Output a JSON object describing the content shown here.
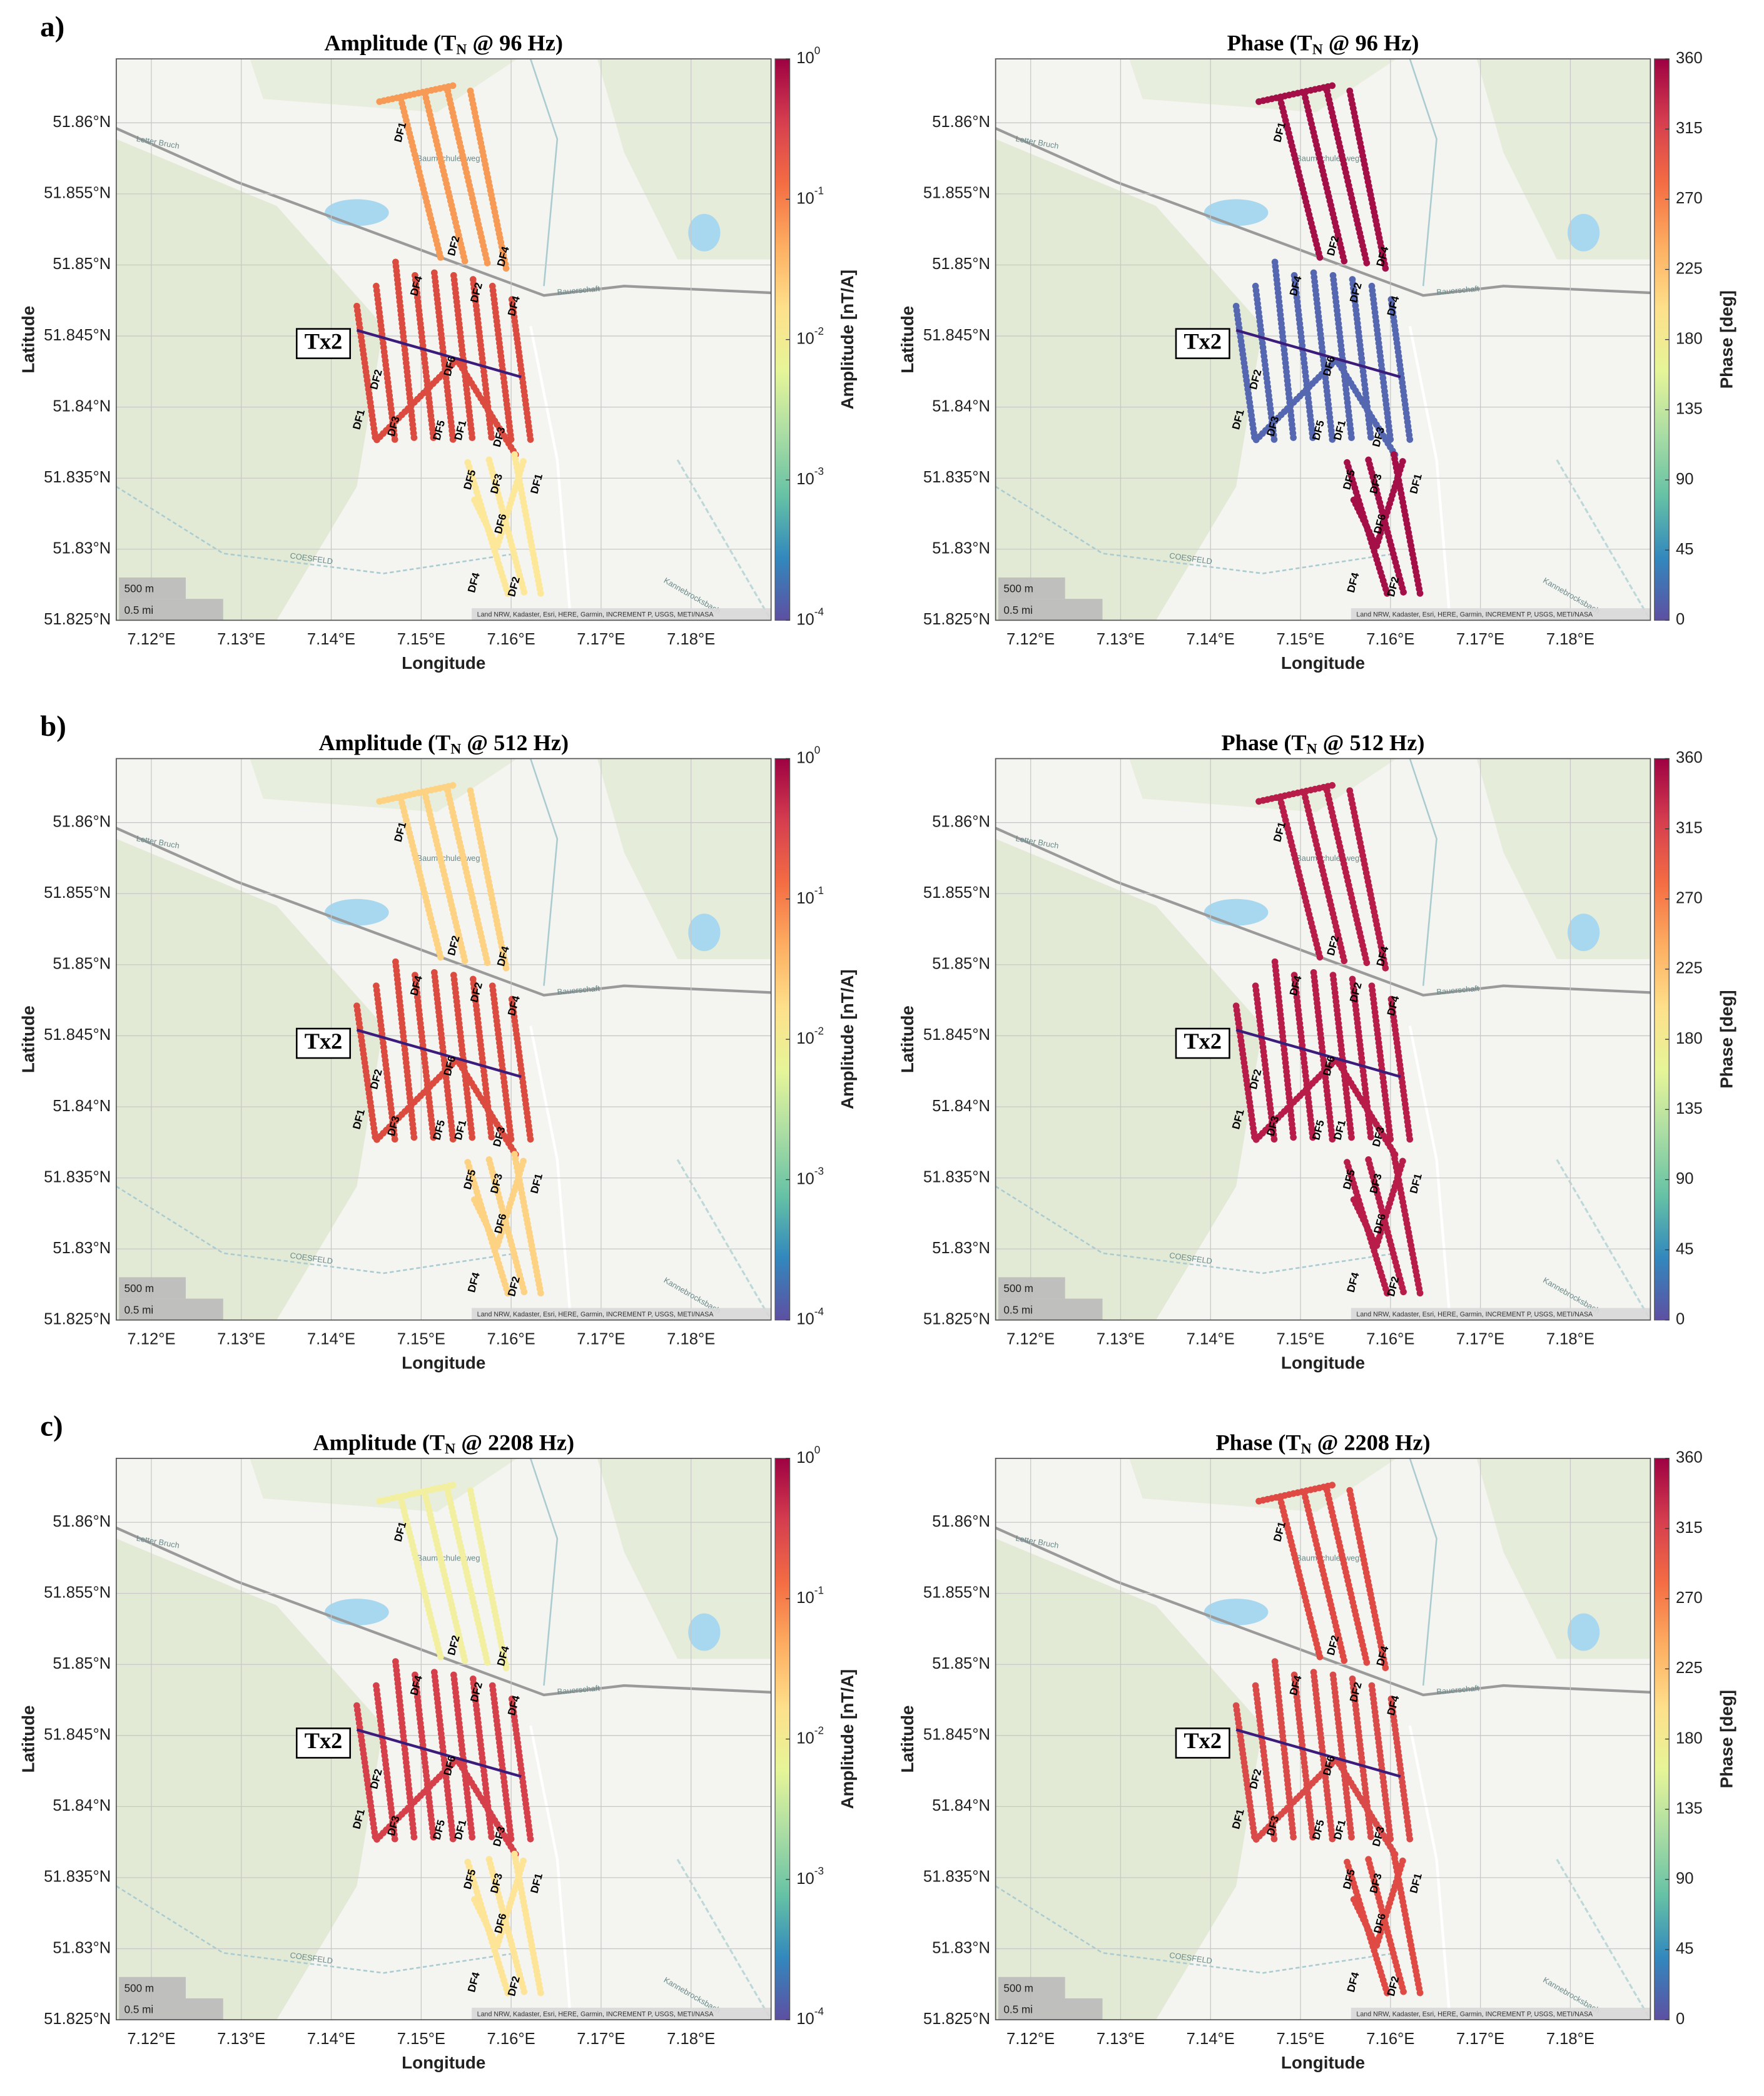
{
  "row_labels": [
    "a)",
    "b)",
    "c)"
  ],
  "x_label": "Longitude",
  "y_label": "Latitude",
  "xlim": [
    7.1161,
    7.1889
  ],
  "ylim": [
    51.825,
    51.8645
  ],
  "xticks": [
    {
      "value": 7.12,
      "label": "7.12°E"
    },
    {
      "value": 7.13,
      "label": "7.13°E"
    },
    {
      "value": 7.14,
      "label": "7.14°E"
    },
    {
      "value": 7.15,
      "label": "7.15°E"
    },
    {
      "value": 7.16,
      "label": "7.16°E"
    },
    {
      "value": 7.17,
      "label": "7.17°E"
    },
    {
      "value": 7.18,
      "label": "7.18°E"
    }
  ],
  "yticks": [
    {
      "value": 51.825,
      "label": "51.825°N"
    },
    {
      "value": 51.83,
      "label": "51.83°N"
    },
    {
      "value": 51.835,
      "label": "51.835°N"
    },
    {
      "value": 51.84,
      "label": "51.84°N"
    },
    {
      "value": 51.845,
      "label": "51.845°N"
    },
    {
      "value": 51.85,
      "label": "51.85°N"
    },
    {
      "value": 51.855,
      "label": "51.855°N"
    },
    {
      "value": 51.86,
      "label": "51.86°N"
    }
  ],
  "colormap": [
    "#5e4fa2",
    "#3288bd",
    "#66c2a5",
    "#abdda4",
    "#e6f598",
    "#fee08b",
    "#fdae61",
    "#f46d43",
    "#d53e4f",
    "#9e0142"
  ],
  "transmitter": "Tx2",
  "track_labels": [
    "DF1",
    "DF2",
    "DF3",
    "DF4",
    "DF5",
    "DF6"
  ],
  "places": [
    "Letter Bruch",
    "Bauerschaft",
    "COESFELD",
    "Kannebrocksbach",
    "Baumschulenweg"
  ],
  "scale_labels": [
    "500 m",
    "0.5 mi"
  ],
  "attribution": "Land NRW, Kadaster, Esri, HERE, Garmin, INCREMENT P, USGS, METI/NASA",
  "panels": [
    {
      "title": "Amplitude (T",
      "title_sub": "N",
      "title_rest": " @ 96 Hz)",
      "colorbar_label": "Amplitude [nT/A]",
      "log": true,
      "clim": [
        0.0001,
        1
      ],
      "cticks": [
        {
          "value": 0.0001,
          "label": "10",
          "exponent": "-4"
        },
        {
          "value": 0.001,
          "label": "10",
          "exponent": "-3"
        },
        {
          "value": 0.01,
          "label": "10",
          "exponent": "-2"
        },
        {
          "value": 0.1,
          "label": "10",
          "exponent": "-1"
        },
        {
          "value": 1,
          "label": "10",
          "exponent": "0"
        }
      ],
      "track_colors": [
        "#f79a55",
        "#dc4b40",
        "#fde89a"
      ]
    },
    {
      "title": "Phase (T",
      "title_sub": "N",
      "title_rest": " @ 96 Hz)",
      "colorbar_label": "Phase [deg]",
      "log": false,
      "clim": [
        0,
        360
      ],
      "cticks": [
        0,
        45,
        90,
        135,
        180,
        225,
        270,
        315,
        360
      ],
      "track_colors": [
        "#a50f47",
        "#5567b0",
        "#a50f47"
      ]
    },
    {
      "title": "Amplitude (T",
      "title_sub": "N",
      "title_rest": " @ 512 Hz)",
      "colorbar_label": "Amplitude [nT/A]",
      "log": true,
      "clim": [
        0.0001,
        1
      ],
      "cticks": [
        {
          "value": 0.0001,
          "label": "10",
          "exponent": "-4"
        },
        {
          "value": 0.001,
          "label": "10",
          "exponent": "-3"
        },
        {
          "value": 0.01,
          "label": "10",
          "exponent": "-2"
        },
        {
          "value": 0.1,
          "label": "10",
          "exponent": "-1"
        },
        {
          "value": 1,
          "label": "10",
          "exponent": "0"
        }
      ],
      "track_colors": [
        "#fdd283",
        "#dc4b40",
        "#fdd283"
      ]
    },
    {
      "title": "Phase (T",
      "title_sub": "N",
      "title_rest": " @ 512 Hz)",
      "colorbar_label": "Phase [deg]",
      "log": false,
      "clim": [
        0,
        360
      ],
      "cticks": [
        0,
        45,
        90,
        135,
        180,
        225,
        270,
        315,
        360
      ],
      "track_colors": [
        "#b81c48",
        "#b81c48",
        "#b81c48"
      ]
    },
    {
      "title": "Amplitude (T",
      "title_sub": "N",
      "title_rest": " @ 2208 Hz)",
      "colorbar_label": "Amplitude [nT/A]",
      "log": true,
      "clim": [
        0.0001,
        1
      ],
      "cticks": [
        {
          "value": 0.0001,
          "label": "10",
          "exponent": "-4"
        },
        {
          "value": 0.001,
          "label": "10",
          "exponent": "-3"
        },
        {
          "value": 0.01,
          "label": "10",
          "exponent": "-2"
        },
        {
          "value": 0.1,
          "label": "10",
          "exponent": "-1"
        },
        {
          "value": 1,
          "label": "10",
          "exponent": "0"
        }
      ],
      "track_colors": [
        "#f2f0a0",
        "#d6404a",
        "#fde497"
      ]
    },
    {
      "title": "Phase (T",
      "title_sub": "N",
      "title_rest": " @ 2208 Hz)",
      "colorbar_label": "Phase [deg]",
      "log": false,
      "clim": [
        0,
        360
      ],
      "cticks": [
        0,
        45,
        90,
        135,
        180,
        225,
        270,
        315,
        360
      ],
      "track_colors": [
        "#df4a45",
        "#d94a48",
        "#df4a45"
      ]
    }
  ]
}
